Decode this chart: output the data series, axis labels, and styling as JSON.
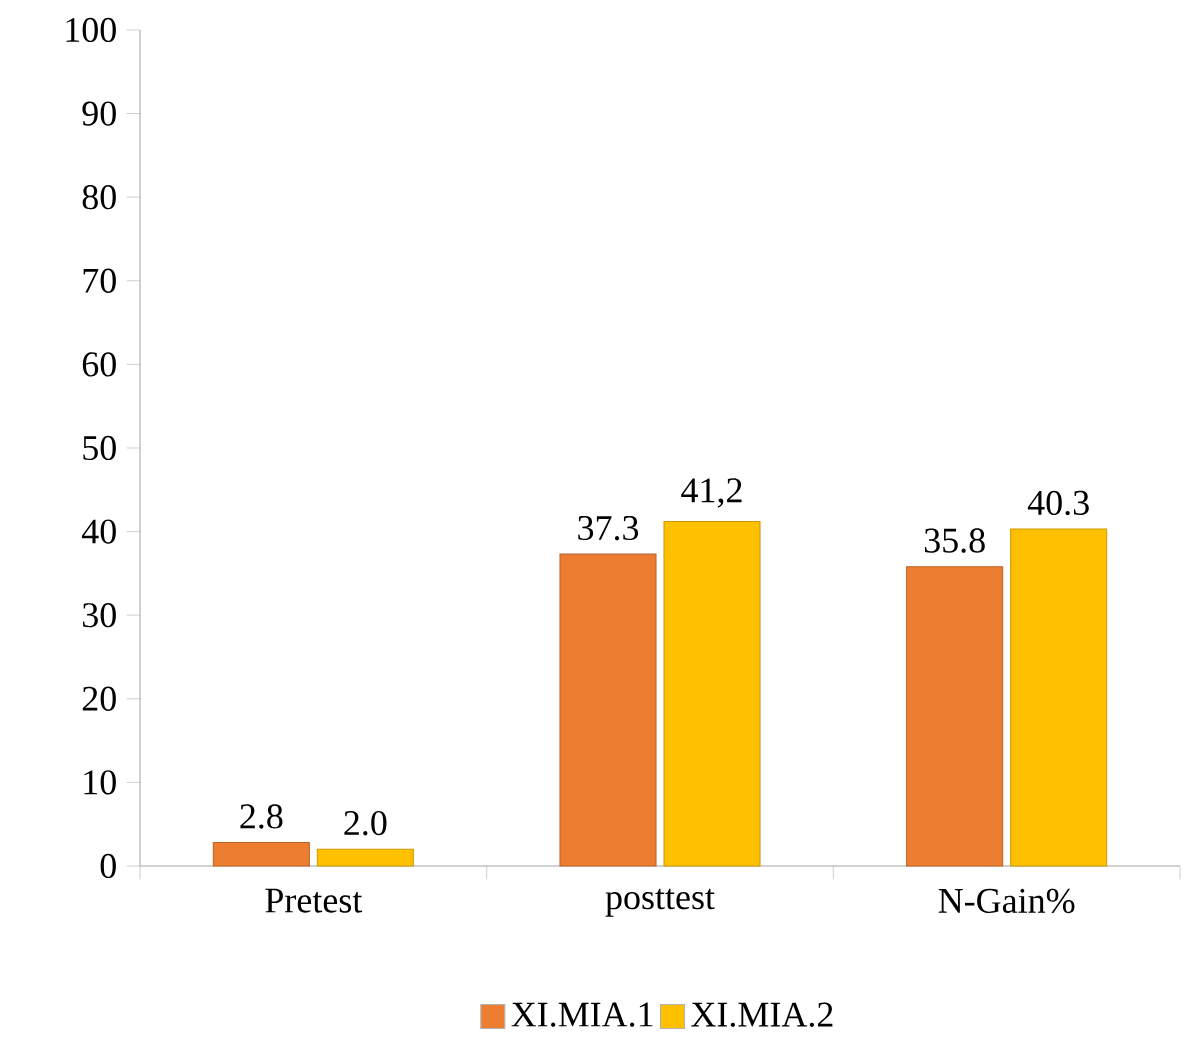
{
  "chart_data": {
    "type": "bar",
    "categories": [
      "Pretest",
      "posttest",
      "N-Gain%"
    ],
    "series": [
      {
        "name": "XI.MIA.1",
        "color": "#ed7d31",
        "values": [
          2.8,
          37.3,
          35.8
        ],
        "value_labels": [
          "2.8",
          "37.3",
          "35.8"
        ]
      },
      {
        "name": "XI.MIA.2",
        "color": "#ffc000",
        "values": [
          2.0,
          41.2,
          40.3
        ],
        "value_labels": [
          "2.0",
          "41,2",
          "40.3"
        ]
      }
    ],
    "ylim": [
      0,
      100
    ],
    "yticks": [
      0,
      10,
      20,
      30,
      40,
      50,
      60,
      70,
      80,
      90,
      100
    ],
    "grid": false,
    "legend": "bottom"
  }
}
